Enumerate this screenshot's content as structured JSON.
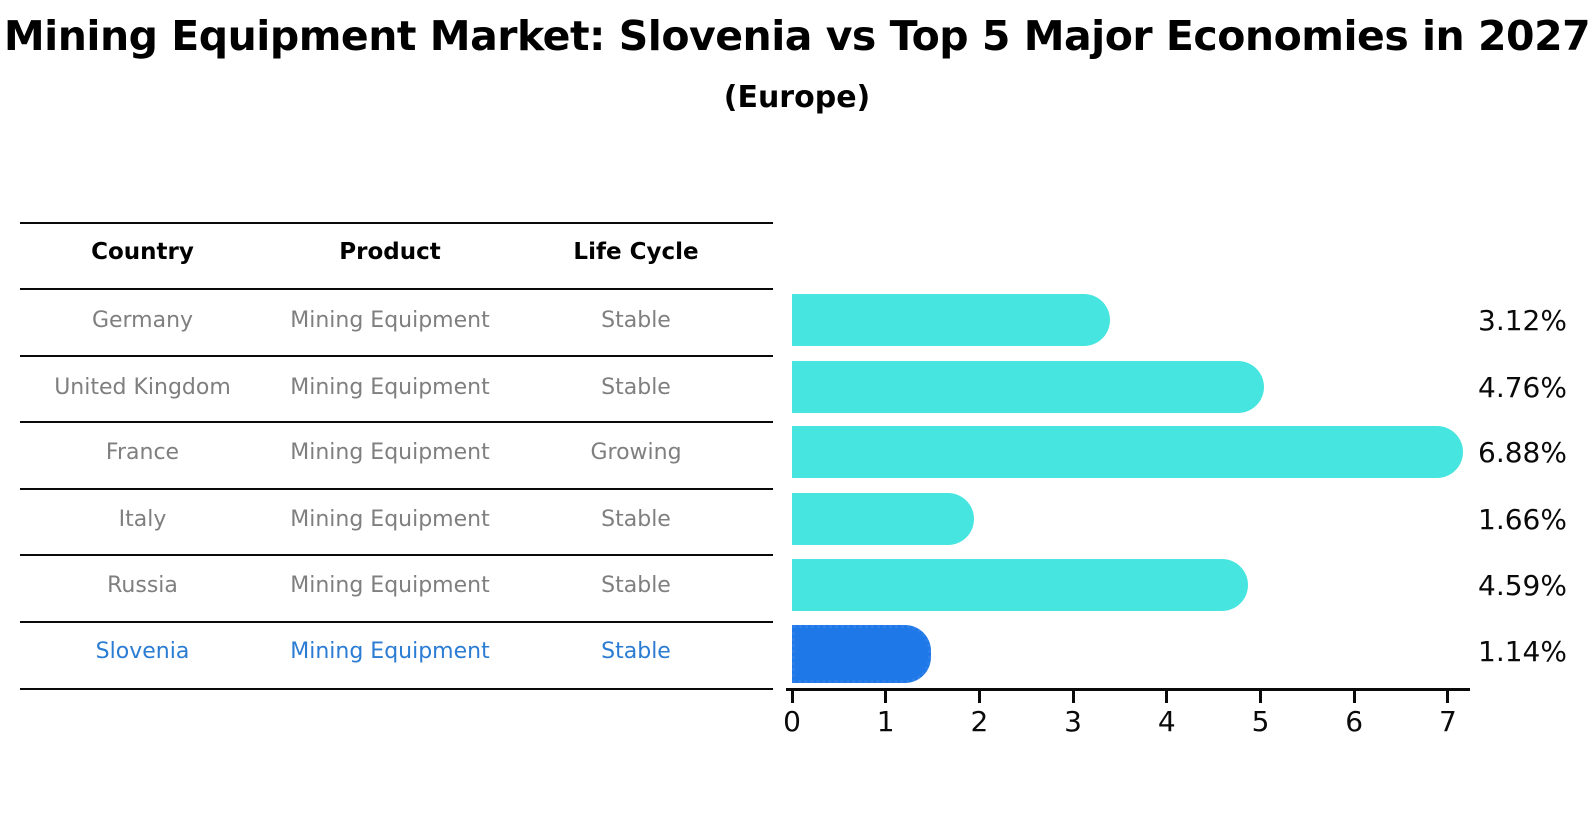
{
  "title": "Mining Equipment Market: Slovenia vs Top 5 Major Economies in 2027",
  "subtitle": "(Europe)",
  "table": {
    "headers": [
      "Country",
      "Product",
      "Life Cycle"
    ],
    "rows": [
      {
        "country": "Germany",
        "product": "Mining Equipment",
        "life_cycle": "Stable",
        "highlighted": false
      },
      {
        "country": "United Kingdom",
        "product": "Mining Equipment",
        "life_cycle": "Stable",
        "highlighted": false
      },
      {
        "country": "France",
        "product": "Mining Equipment",
        "life_cycle": "Growing",
        "highlighted": false
      },
      {
        "country": "Italy",
        "product": "Mining Equipment",
        "life_cycle": "Stable",
        "highlighted": false
      },
      {
        "country": "Russia",
        "product": "Mining Equipment",
        "life_cycle": "Stable",
        "highlighted": false
      },
      {
        "country": "Slovenia",
        "product": "Mining Equipment",
        "life_cycle": "Stable",
        "highlighted": true
      }
    ]
  },
  "chart_data": {
    "type": "bar",
    "orientation": "horizontal",
    "categories": [
      "Germany",
      "United Kingdom",
      "France",
      "Italy",
      "Russia",
      "Slovenia"
    ],
    "values": [
      3.12,
      4.76,
      6.88,
      1.66,
      4.59,
      1.14
    ],
    "value_labels": [
      "3.12%",
      "4.76%",
      "6.88%",
      "1.66%",
      "4.59%",
      "1.14%"
    ],
    "title": "",
    "xlabel": "",
    "ylabel": "",
    "xlim": [
      0,
      7
    ],
    "x_ticks": [
      0,
      1,
      2,
      3,
      4,
      5,
      6,
      7
    ],
    "grid": false,
    "legend": "none",
    "bar_color": "#46e5e0",
    "highlight_color": "#1e78e8",
    "highlight_index": 5,
    "highlight_edge_style": "dotted",
    "text_highlight_color": "#2b7cd3"
  }
}
